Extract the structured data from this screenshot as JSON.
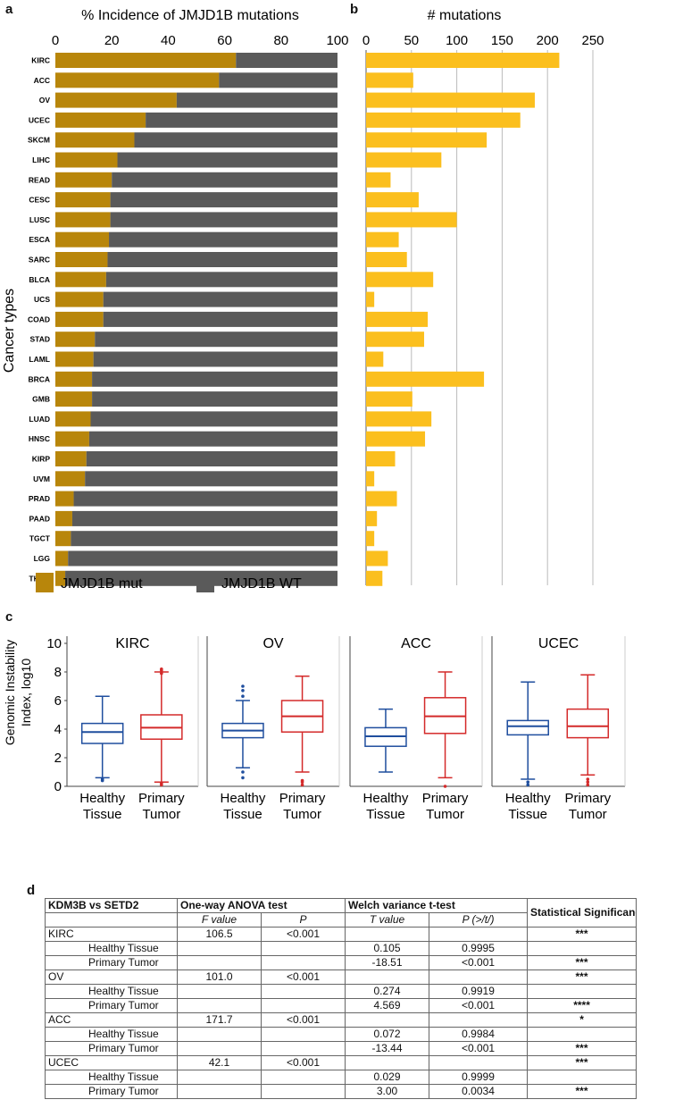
{
  "panel_labels": {
    "a": "a",
    "b": "b",
    "c": "c",
    "d": "d"
  },
  "chart_data": [
    {
      "type": "bar",
      "id": "a",
      "title": "% Incidence of JMJD1B mutations",
      "ylabel": "Cancer types",
      "xlim": [
        0,
        100
      ],
      "xticks": [
        0,
        20,
        40,
        60,
        80,
        100
      ],
      "stacked": true,
      "orientation": "horizontal",
      "categories": [
        "KIRC",
        "ACC",
        "OV",
        "UCEC",
        "SKCM",
        "LIHC",
        "READ",
        "CESC",
        "LUSC",
        "ESCA",
        "SARC",
        "BLCA",
        "UCS",
        "COAD",
        "STAD",
        "LAML",
        "BRCA",
        "GMB",
        "LUAD",
        "HNSC",
        "KIRP",
        "UVM",
        "PRAD",
        "PAAD",
        "TGCT",
        "LGG",
        "THCA"
      ],
      "series": [
        {
          "name": "JMJD1B mut",
          "color": "#B8860B",
          "values": [
            64,
            58,
            43,
            32,
            28,
            22,
            20,
            19.5,
            19.5,
            19,
            18.5,
            18,
            17,
            17,
            14,
            13.5,
            13,
            13,
            12.5,
            12,
            11,
            10.5,
            6.5,
            6,
            5.5,
            4.5,
            3.5
          ]
        },
        {
          "name": "JMJD1B WT",
          "color": "#5A5A5A",
          "values": [
            36,
            42,
            57,
            68,
            72,
            78,
            80,
            80.5,
            80.5,
            81,
            81.5,
            82,
            83,
            83,
            86,
            86.5,
            87,
            87,
            87.5,
            88,
            89,
            89.5,
            93.5,
            94,
            94.5,
            95.5,
            96.5
          ]
        }
      ],
      "legend": [
        "JMJD1B mut",
        "JMJD1B WT"
      ],
      "legend_position": "bottom"
    },
    {
      "type": "bar",
      "id": "b",
      "title": "# mutations",
      "orientation": "horizontal",
      "xlim": [
        0,
        250
      ],
      "xticks": [
        0,
        50,
        100,
        150,
        200,
        250
      ],
      "color": "#FBBF1E",
      "categories": [
        "KIRC",
        "ACC",
        "OV",
        "UCEC",
        "SKCM",
        "LIHC",
        "READ",
        "CESC",
        "LUSC",
        "ESCA",
        "SARC",
        "BLCA",
        "UCS",
        "COAD",
        "STAD",
        "LAML",
        "BRCA",
        "GMB",
        "LUAD",
        "HNSC",
        "KIRP",
        "UVM",
        "PRAD",
        "PAAD",
        "TGCT",
        "LGG",
        "THCA"
      ],
      "values": [
        213,
        52,
        186,
        170,
        133,
        83,
        27,
        58,
        100,
        36,
        45,
        74,
        9,
        68,
        64,
        19,
        130,
        51,
        72,
        65,
        32,
        9,
        34,
        12,
        9,
        24,
        18
      ]
    },
    {
      "type": "box",
      "id": "c",
      "ylabel": "Genomic Instability Index, log10",
      "ylim": [
        0,
        10
      ],
      "yticks": [
        0,
        2,
        4,
        6,
        8,
        10
      ],
      "categories": [
        "Healthy Tissue",
        "Primary Tumor"
      ],
      "category_lines": [
        [
          "Healthy",
          "Tissue"
        ],
        [
          "Primary",
          "Tumor"
        ]
      ],
      "colors": {
        "healthy": "#1F4E9E",
        "tumor": "#D42A2A"
      },
      "panels": [
        {
          "name": "KIRC",
          "boxes": [
            {
              "group": "Healthy Tissue",
              "min": 0.6,
              "q1": 3.0,
              "median": 3.8,
              "q3": 4.4,
              "max": 6.3,
              "outliers": [
                0.5,
                0.4
              ]
            },
            {
              "group": "Primary Tumor",
              "min": 0.3,
              "q1": 3.3,
              "median": 4.1,
              "q3": 5.0,
              "max": 8.0,
              "outliers": [
                8.2,
                8.1,
                7.9,
                0.2,
                0.1
              ]
            }
          ]
        },
        {
          "name": "OV",
          "boxes": [
            {
              "group": "Healthy Tissue",
              "min": 1.3,
              "q1": 3.4,
              "median": 3.9,
              "q3": 4.4,
              "max": 6.0,
              "outliers": [
                6.3,
                6.7,
                7.0,
                1.0,
                0.6
              ]
            },
            {
              "group": "Primary Tumor",
              "min": 1.0,
              "q1": 3.8,
              "median": 4.9,
              "q3": 6.0,
              "max": 7.7,
              "outliers": [
                0.4,
                0.3,
                0.1
              ]
            }
          ]
        },
        {
          "name": "ACC",
          "boxes": [
            {
              "group": "Healthy Tissue",
              "min": 1.0,
              "q1": 2.8,
              "median": 3.5,
              "q3": 4.1,
              "max": 5.4,
              "outliers": []
            },
            {
              "group": "Primary Tumor",
              "min": 0.6,
              "q1": 3.7,
              "median": 4.9,
              "q3": 6.2,
              "max": 8.0,
              "outliers": [
                0.0
              ]
            }
          ]
        },
        {
          "name": "UCEC",
          "boxes": [
            {
              "group": "Healthy Tissue",
              "min": 0.5,
              "q1": 3.6,
              "median": 4.2,
              "q3": 4.6,
              "max": 7.3,
              "outliers": [
                0.3,
                0.1
              ]
            },
            {
              "group": "Primary Tumor",
              "min": 0.8,
              "q1": 3.4,
              "median": 4.2,
              "q3": 5.4,
              "max": 7.8,
              "outliers": [
                0.5,
                0.3,
                0.1
              ]
            }
          ]
        }
      ]
    }
  ],
  "table": {
    "header1": [
      "KDM3B vs SETD2",
      "One-way ANOVA test",
      "Welch variance t-test",
      "Statistical Significance"
    ],
    "header2": [
      "",
      "F value",
      "P",
      "T value",
      "P (>/t/)"
    ],
    "rows": [
      {
        "label": "KIRC",
        "f": "106.5",
        "p": "<0.001",
        "t": "",
        "pt": "",
        "sig": "***",
        "sub": false
      },
      {
        "label": "Healthy Tissue",
        "f": "",
        "p": "",
        "t": "0.105",
        "pt": "0.9995",
        "sig": "",
        "sub": true
      },
      {
        "label": "Primary Tumor",
        "f": "",
        "p": "",
        "t": "-18.51",
        "pt": "<0.001",
        "sig": "***",
        "sub": true
      },
      {
        "label": "OV",
        "f": "101.0",
        "p": "<0.001",
        "t": "",
        "pt": "",
        "sig": "***",
        "sub": false
      },
      {
        "label": "Healthy Tissue",
        "f": "",
        "p": "",
        "t": "0.274",
        "pt": "0.9919",
        "sig": "",
        "sub": true
      },
      {
        "label": "Primary Tumor",
        "f": "",
        "p": "",
        "t": "4.569",
        "pt": "<0.001",
        "sig": "****",
        "sub": true
      },
      {
        "label": "ACC",
        "f": "171.7",
        "p": "<0.001",
        "t": "",
        "pt": "",
        "sig": "*",
        "sub": false
      },
      {
        "label": "Healthy Tissue",
        "f": "",
        "p": "",
        "t": "0.072",
        "pt": "0.9984",
        "sig": "",
        "sub": true
      },
      {
        "label": "Primary Tumor",
        "f": "",
        "p": "",
        "t": "-13.44",
        "pt": "<0.001",
        "sig": "***",
        "sub": true
      },
      {
        "label": "UCEC",
        "f": "42.1",
        "p": "<0.001",
        "t": "",
        "pt": "",
        "sig": "***",
        "sub": false
      },
      {
        "label": "Healthy Tissue",
        "f": "",
        "p": "",
        "t": "0.029",
        "pt": "0.9999",
        "sig": "",
        "sub": true
      },
      {
        "label": "Primary Tumor",
        "f": "",
        "p": "",
        "t": "3.00",
        "pt": "0.0034",
        "sig": "***",
        "sub": true
      }
    ]
  }
}
